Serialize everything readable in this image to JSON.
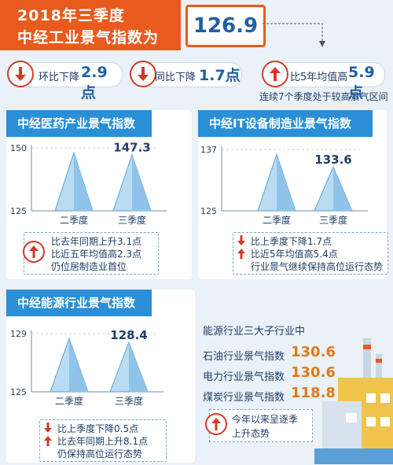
{
  "header": {
    "title_line1": "2018年三季度",
    "title_line2": "中经工业景气指数为",
    "index_value": "126.9"
  },
  "stats": [
    {
      "label": "环比下降",
      "value": "2.9点",
      "direction": "down"
    },
    {
      "label": "同比下降",
      "value": "1.7点",
      "direction": "down"
    },
    {
      "label": "比5年均值高",
      "value": "5.9点",
      "direction": "up"
    }
  ],
  "streak_note": "连续7个季度处于较高景气区间",
  "colors": {
    "accent": "#e85a1e",
    "title_blue": "#2a8fd6",
    "pyramid": "#8fc3ea",
    "down_arrow": "#d23a2a",
    "value_orange": "#e07a1a"
  },
  "chart_data": [
    {
      "type": "bar",
      "title": "中经医药产业景气指数",
      "categories": [
        "二季度",
        "三季度"
      ],
      "values": [
        null,
        147.3
      ],
      "ylim": [
        125,
        150
      ],
      "yticks": [
        150,
        125
      ],
      "data_labels": [
        "",
        "147.3"
      ],
      "notes": [
        "比去年同期上升3.1点",
        "比近五年均值高2.3点",
        "仍位居制造业首位"
      ],
      "note_arrows": [
        "up",
        "",
        ""
      ]
    },
    {
      "type": "bar",
      "title": "中经IT设备制造业景气指数",
      "categories": [
        "二季度",
        "三季度"
      ],
      "values": [
        null,
        133.6
      ],
      "ylim": [
        125,
        137
      ],
      "yticks": [
        137,
        125
      ],
      "data_labels": [
        "",
        "133.6"
      ],
      "notes": [
        "比上季度下降1.7点",
        "比近5年均值高5.4点",
        "行业景气继续保持高位运行态势"
      ],
      "note_arrows": [
        "down",
        "up",
        ""
      ]
    },
    {
      "type": "bar",
      "title": "中经能源行业景气指数",
      "categories": [
        "二季度",
        "三季度"
      ],
      "values": [
        null,
        128.4
      ],
      "ylim": [
        125,
        129
      ],
      "yticks": [
        129,
        125
      ],
      "data_labels": [
        "",
        "128.4"
      ],
      "notes": [
        "比上季度下降0.5点",
        "比去年同期上升8.1点",
        "仍保持高位运行态势"
      ],
      "note_arrows": [
        "down",
        "up",
        ""
      ]
    }
  ],
  "energy_sub": {
    "heading": "能源行业三大子行业中",
    "items": [
      {
        "label": "石油行业景气指数",
        "value": "130.6"
      },
      {
        "label": "电力行业景气指数",
        "value": "130.6"
      },
      {
        "label": "煤炭行业景气指数",
        "value": "118.8"
      }
    ],
    "trend_line1": "今年以来呈逐季",
    "trend_line2": "上升态势"
  }
}
